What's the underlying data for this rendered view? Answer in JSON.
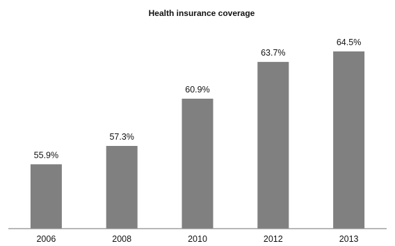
{
  "chart_data": {
    "type": "bar",
    "title": "Health insurance coverage",
    "xlabel": "",
    "ylabel": "",
    "categories": [
      "2006",
      "2008",
      "2010",
      "2012",
      "2013"
    ],
    "values": [
      55.9,
      57.3,
      60.9,
      63.7,
      64.5
    ],
    "value_labels": [
      "55.9%",
      "57.3%",
      "60.9%",
      "63.7%",
      "64.5%"
    ],
    "y_axis_visible": false,
    "grid": false,
    "legend": "none",
    "bar_color": "#808080",
    "axis_color": "#8c8c8c"
  }
}
